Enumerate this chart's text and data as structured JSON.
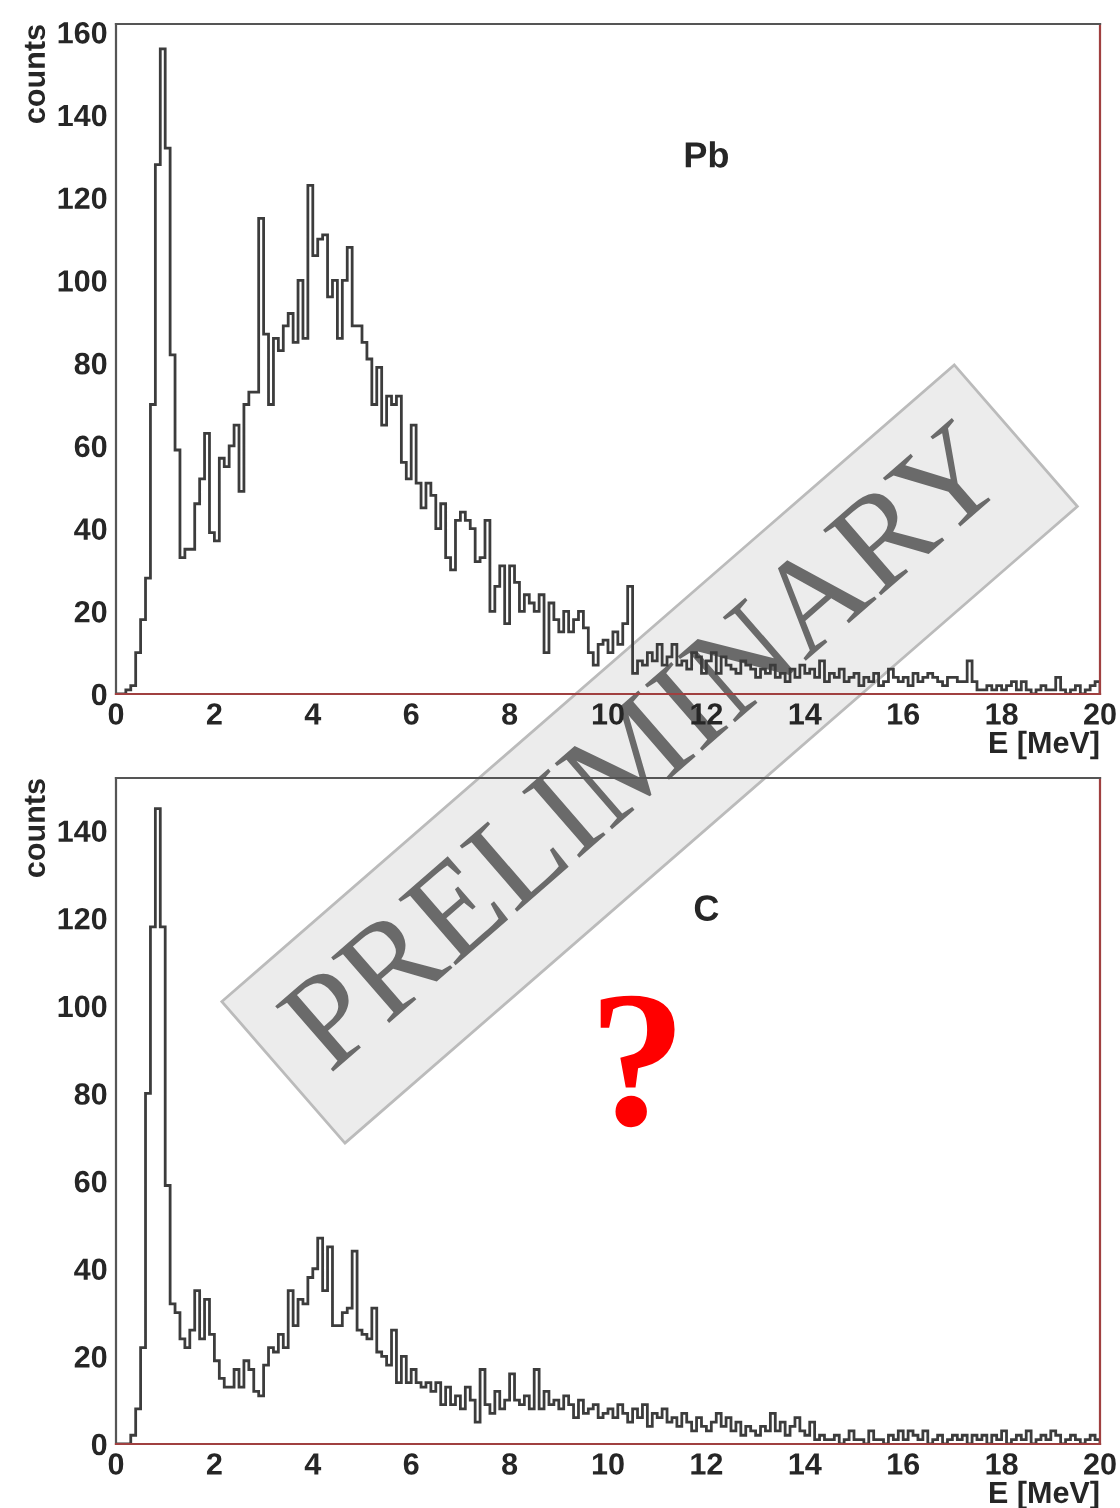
{
  "chart_data": [
    {
      "type": "histogram",
      "ylabel": "counts",
      "xlabel": "E [MeV]",
      "color": "#3c3c3c",
      "annotations": [
        "Pb",
        "PRELIMINARY"
      ],
      "xlim": [
        0,
        20
      ],
      "ylim": [
        0,
        162
      ],
      "xticks": [
        0,
        2,
        4,
        6,
        8,
        10,
        12,
        14,
        16,
        18,
        20
      ],
      "yticks": [
        0,
        20,
        40,
        60,
        80,
        100,
        120,
        140,
        160
      ],
      "bins": [
        0,
        0.1,
        0.2,
        0.3,
        0.4,
        0.5,
        0.6,
        0.7,
        0.8,
        0.9,
        1,
        1.1,
        1.2,
        1.3,
        1.4,
        1.5,
        1.6,
        1.7,
        1.8,
        1.9,
        2,
        2.1,
        2.2,
        2.3,
        2.4,
        2.5,
        2.6,
        2.7,
        2.8,
        2.9,
        3,
        3.1,
        3.2,
        3.3,
        3.4,
        3.5,
        3.6,
        3.7,
        3.8,
        3.9,
        4,
        4.1,
        4.2,
        4.3,
        4.4,
        4.5,
        4.6,
        4.7,
        4.8,
        4.9,
        5,
        5.1,
        5.2,
        5.3,
        5.4,
        5.5,
        5.6,
        5.7,
        5.8,
        5.9,
        6,
        6.1,
        6.2,
        6.3,
        6.4,
        6.5,
        6.6,
        6.7,
        6.8,
        6.9,
        7,
        7.1,
        7.2,
        7.3,
        7.4,
        7.5,
        7.6,
        7.7,
        7.8,
        7.9,
        8,
        8.1,
        8.2,
        8.3,
        8.4,
        8.5,
        8.6,
        8.7,
        8.8,
        8.9,
        9,
        9.1,
        9.2,
        9.3,
        9.4,
        9.5,
        9.6,
        9.7,
        9.8,
        9.9,
        10,
        10.1,
        10.2,
        10.3,
        10.4,
        10.5,
        10.6,
        10.7,
        10.8,
        10.9,
        11,
        11.1,
        11.2,
        11.3,
        11.4,
        11.5,
        11.6,
        11.7,
        11.8,
        11.9,
        12,
        12.1,
        12.2,
        12.3,
        12.4,
        12.5,
        12.6,
        12.7,
        12.8,
        12.9,
        13,
        13.1,
        13.2,
        13.3,
        13.4,
        13.5,
        13.6,
        13.7,
        13.8,
        13.9,
        14,
        14.1,
        14.2,
        14.3,
        14.4,
        14.5,
        14.6,
        14.7,
        14.8,
        14.9,
        15,
        15.1,
        15.2,
        15.3,
        15.4,
        15.5,
        15.6,
        15.7,
        15.8,
        15.9,
        16,
        16.1,
        16.2,
        16.3,
        16.4,
        16.5,
        16.6,
        16.7,
        16.8,
        16.9,
        17,
        17.1,
        17.2,
        17.3,
        17.4,
        17.5,
        17.6,
        17.7,
        17.8,
        17.9,
        18,
        18.1,
        18.2,
        18.3,
        18.4,
        18.5,
        18.6,
        18.7,
        18.8,
        18.9,
        19,
        19.1,
        19.2,
        19.3,
        19.4,
        19.5,
        19.6,
        19.7,
        19.8,
        19.9,
        20
      ],
      "values": [
        0,
        0,
        1,
        2,
        10,
        18,
        28,
        70,
        128,
        156,
        132,
        82,
        59,
        33,
        35,
        35,
        46,
        52,
        63,
        39,
        37,
        57,
        55,
        60,
        65,
        49,
        70,
        73,
        73,
        115,
        87,
        70,
        86,
        83,
        89,
        92,
        85,
        100,
        86,
        123,
        106,
        110,
        111,
        96,
        100,
        86,
        100,
        108,
        89,
        89,
        85,
        81,
        70,
        79,
        65,
        72,
        70,
        72,
        56,
        52,
        65,
        51,
        45,
        51,
        48,
        40,
        46,
        33,
        30,
        42,
        44,
        42,
        40,
        32,
        33,
        42,
        20,
        26,
        31,
        17,
        31,
        27,
        20,
        24,
        22,
        20,
        24,
        10,
        22,
        18,
        15,
        20,
        15,
        18,
        20,
        16,
        10,
        7,
        12,
        13,
        10,
        15,
        12,
        17,
        26,
        5,
        8,
        7,
        10,
        8,
        12,
        7,
        9,
        12,
        7,
        8,
        6,
        10,
        9,
        5,
        8,
        10,
        5,
        9,
        7,
        6,
        5,
        8,
        7,
        6,
        4,
        6,
        5,
        7,
        4,
        5,
        3,
        6,
        4,
        7,
        5,
        6,
        4,
        8,
        3,
        5,
        4,
        6,
        3,
        4,
        5,
        2,
        4,
        3,
        5,
        2,
        3,
        6,
        4,
        3,
        4,
        2,
        5,
        3,
        4,
        5,
        4,
        3,
        2,
        4,
        4,
        3,
        3,
        8,
        3,
        1,
        1,
        2,
        1,
        2,
        1,
        2,
        3,
        1,
        3,
        1,
        0,
        1,
        2,
        1,
        1,
        4,
        1,
        0,
        1,
        2,
        0,
        1,
        2,
        3
      ]
    },
    {
      "type": "histogram",
      "ylabel": "counts",
      "xlabel": "E [MeV]",
      "color": "#3c3c3c",
      "annotations": [
        "C",
        "?"
      ],
      "xlim": [
        0,
        20
      ],
      "ylim": [
        0,
        152
      ],
      "xticks": [
        0,
        2,
        4,
        6,
        8,
        10,
        12,
        14,
        16,
        18,
        20
      ],
      "yticks": [
        0,
        20,
        40,
        60,
        80,
        100,
        120,
        140
      ],
      "bins": [
        0,
        0.1,
        0.2,
        0.3,
        0.4,
        0.5,
        0.6,
        0.7,
        0.8,
        0.9,
        1,
        1.1,
        1.2,
        1.3,
        1.4,
        1.5,
        1.6,
        1.7,
        1.8,
        1.9,
        2,
        2.1,
        2.2,
        2.3,
        2.4,
        2.5,
        2.6,
        2.7,
        2.8,
        2.9,
        3,
        3.1,
        3.2,
        3.3,
        3.4,
        3.5,
        3.6,
        3.7,
        3.8,
        3.9,
        4,
        4.1,
        4.2,
        4.3,
        4.4,
        4.5,
        4.6,
        4.7,
        4.8,
        4.9,
        5,
        5.1,
        5.2,
        5.3,
        5.4,
        5.5,
        5.6,
        5.7,
        5.8,
        5.9,
        6,
        6.1,
        6.2,
        6.3,
        6.4,
        6.5,
        6.6,
        6.7,
        6.8,
        6.9,
        7,
        7.1,
        7.2,
        7.3,
        7.4,
        7.5,
        7.6,
        7.7,
        7.8,
        7.9,
        8,
        8.1,
        8.2,
        8.3,
        8.4,
        8.5,
        8.6,
        8.7,
        8.8,
        8.9,
        9,
        9.1,
        9.2,
        9.3,
        9.4,
        9.5,
        9.6,
        9.7,
        9.8,
        9.9,
        10,
        10.1,
        10.2,
        10.3,
        10.4,
        10.5,
        10.6,
        10.7,
        10.8,
        10.9,
        11,
        11.1,
        11.2,
        11.3,
        11.4,
        11.5,
        11.6,
        11.7,
        11.8,
        11.9,
        12,
        12.1,
        12.2,
        12.3,
        12.4,
        12.5,
        12.6,
        12.7,
        12.8,
        12.9,
        13,
        13.1,
        13.2,
        13.3,
        13.4,
        13.5,
        13.6,
        13.7,
        13.8,
        13.9,
        14,
        14.1,
        14.2,
        14.3,
        14.4,
        14.5,
        14.6,
        14.7,
        14.8,
        14.9,
        15,
        15.1,
        15.2,
        15.3,
        15.4,
        15.5,
        15.6,
        15.7,
        15.8,
        15.9,
        16,
        16.1,
        16.2,
        16.3,
        16.4,
        16.5,
        16.6,
        16.7,
        16.8,
        16.9,
        17,
        17.1,
        17.2,
        17.3,
        17.4,
        17.5,
        17.6,
        17.7,
        17.8,
        17.9,
        18,
        18.1,
        18.2,
        18.3,
        18.4,
        18.5,
        18.6,
        18.7,
        18.8,
        18.9,
        19,
        19.1,
        19.2,
        19.3,
        19.4,
        19.5,
        19.6,
        19.7,
        19.8,
        19.9,
        20
      ],
      "values": [
        0,
        0,
        0,
        2,
        8,
        22,
        80,
        118,
        145,
        118,
        59,
        32,
        30,
        24,
        22,
        26,
        35,
        24,
        33,
        25,
        19,
        15,
        13,
        13,
        17,
        13,
        19,
        17,
        12,
        11,
        18,
        22,
        21,
        25,
        22,
        35,
        27,
        33,
        32,
        38,
        40,
        47,
        35,
        45,
        27,
        27,
        30,
        31,
        44,
        26,
        25,
        24,
        31,
        21,
        20,
        18,
        26,
        14,
        20,
        14,
        17,
        14,
        13,
        14,
        12,
        14,
        9,
        13,
        9,
        11,
        8,
        13,
        10,
        5,
        17,
        9,
        7,
        12,
        8,
        10,
        16,
        10,
        9,
        11,
        8,
        17,
        8,
        12,
        9,
        10,
        8,
        11,
        9,
        6,
        10,
        7,
        8,
        9,
        6,
        7,
        8,
        6,
        9,
        7,
        5,
        8,
        6,
        9,
        4,
        7,
        6,
        8,
        5,
        6,
        4,
        7,
        5,
        3,
        6,
        4,
        3,
        5,
        7,
        4,
        6,
        3,
        5,
        2,
        4,
        3,
        2,
        4,
        3,
        7,
        3,
        5,
        2,
        4,
        6,
        3,
        2,
        5,
        1,
        2,
        1,
        1,
        2,
        0,
        1,
        3,
        1,
        1,
        0,
        3,
        1,
        1,
        0,
        2,
        1,
        3,
        1,
        3,
        2,
        1,
        3,
        0,
        1,
        2,
        0,
        1,
        2,
        1,
        2,
        0,
        2,
        1,
        2,
        0,
        2,
        1,
        3,
        0,
        1,
        2,
        1,
        3,
        0,
        1,
        2,
        1,
        3,
        2,
        0,
        1,
        2,
        1,
        0,
        1,
        2,
        1
      ]
    }
  ]
}
